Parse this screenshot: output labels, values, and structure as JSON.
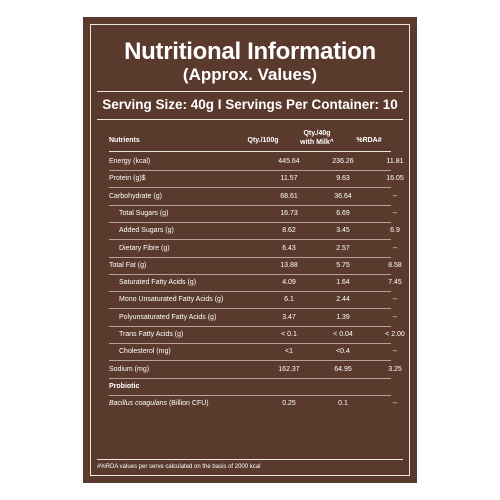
{
  "title": "Nutritional Information",
  "subtitle": "(Approx. Values)",
  "serving_info": "Serving Size: 40g I Servings Per Container: 10",
  "columns": {
    "nutrients": "Nutrients",
    "qty100": "Qty./100g",
    "qty40_line1": "Qty./40g",
    "qty40_line2": "with Milk^",
    "rda": "%RDA#"
  },
  "rows": [
    {
      "name": "Energy (kcal)",
      "q100": "445.64",
      "q40": "236.26",
      "rda": "11.81"
    },
    {
      "name": "Protein (g)$",
      "q100": "11.57",
      "q40": "9.63",
      "rda": "16.05"
    },
    {
      "name": "Carbohydrate (g)",
      "q100": "68.61",
      "q40": "36.64",
      "rda": "--"
    },
    {
      "name": "Total Sugars (g)",
      "q100": "16.73",
      "q40": "6.69",
      "rda": "--"
    },
    {
      "name": "Added Sugars (g)",
      "q100": "8.62",
      "q40": "3.45",
      "rda": "6.9"
    },
    {
      "name": "Dietary Fibre (g)",
      "q100": "6.43",
      "q40": "2.57",
      "rda": "--"
    },
    {
      "name": "Total Fat (g)",
      "q100": "13.88",
      "q40": "5.75",
      "rda": "8.58"
    },
    {
      "name": "Saturated Fatty Acids (g)",
      "q100": "4.09",
      "q40": "1.64",
      "rda": "7.45"
    },
    {
      "name": "Mono Unsaturated Fatty Acids (g)",
      "q100": "6.1",
      "q40": "2.44",
      "rda": "--"
    },
    {
      "name": "Polyunsaturated Fatty Acids (g)",
      "q100": "3.47",
      "q40": "1.39",
      "rda": "--"
    },
    {
      "name": "Trans Fatty Acids (g)",
      "q100": "< 0.1",
      "q40": "< 0.04",
      "rda": "< 2.00"
    },
    {
      "name": "Cholesterol (mg)",
      "q100": "<1",
      "q40": "<0.4",
      "rda": "--"
    },
    {
      "name": "Sodium (mg)",
      "q100": "162.37",
      "q40": "64.95",
      "rda": "3.25"
    },
    {
      "name": "Probiotic",
      "q100": "",
      "q40": "",
      "rda": ""
    },
    {
      "name_italic": "Bacillus coagulans",
      "name": "(Billion CFU)",
      "q100": "0.25",
      "q40": "0.1",
      "rda": "--"
    }
  ],
  "footnote": "#%RDA values per serve calculated on the basis of 2000 kcal",
  "colors": {
    "panel": "#5a3a2c",
    "text": "#ffffff",
    "rule": "#efe6df"
  }
}
